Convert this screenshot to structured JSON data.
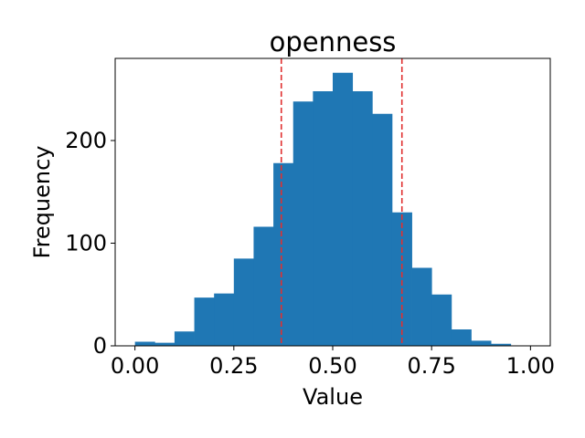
{
  "chart_data": {
    "type": "bar",
    "title": "openness",
    "xlabel": "Value",
    "ylabel": "Frequency",
    "xlim": [
      -0.05,
      1.05
    ],
    "ylim": [
      0,
      280
    ],
    "xticks": [
      0.0,
      0.25,
      0.5,
      0.75,
      1.0
    ],
    "xtick_labels": [
      "0.00",
      "0.25",
      "0.50",
      "0.75",
      "1.00"
    ],
    "yticks": [
      0,
      100,
      200
    ],
    "ytick_labels": [
      "0",
      "100",
      "200"
    ],
    "bin_edges": [
      0.0,
      0.05,
      0.1,
      0.15,
      0.2,
      0.25,
      0.3,
      0.35,
      0.4,
      0.45,
      0.5,
      0.55,
      0.6,
      0.65,
      0.7,
      0.75,
      0.8,
      0.85,
      0.9,
      0.95,
      1.0
    ],
    "values": [
      4,
      3,
      14,
      47,
      51,
      85,
      116,
      178,
      238,
      248,
      266,
      248,
      226,
      130,
      76,
      50,
      16,
      5,
      2,
      0
    ],
    "bar_color": "#1f77b4",
    "reference_lines": [
      {
        "x": 0.37,
        "color": "#e03030",
        "style": "dashed"
      },
      {
        "x": 0.675,
        "color": "#e03030",
        "style": "dashed"
      }
    ],
    "grid": false,
    "legend": "none"
  }
}
